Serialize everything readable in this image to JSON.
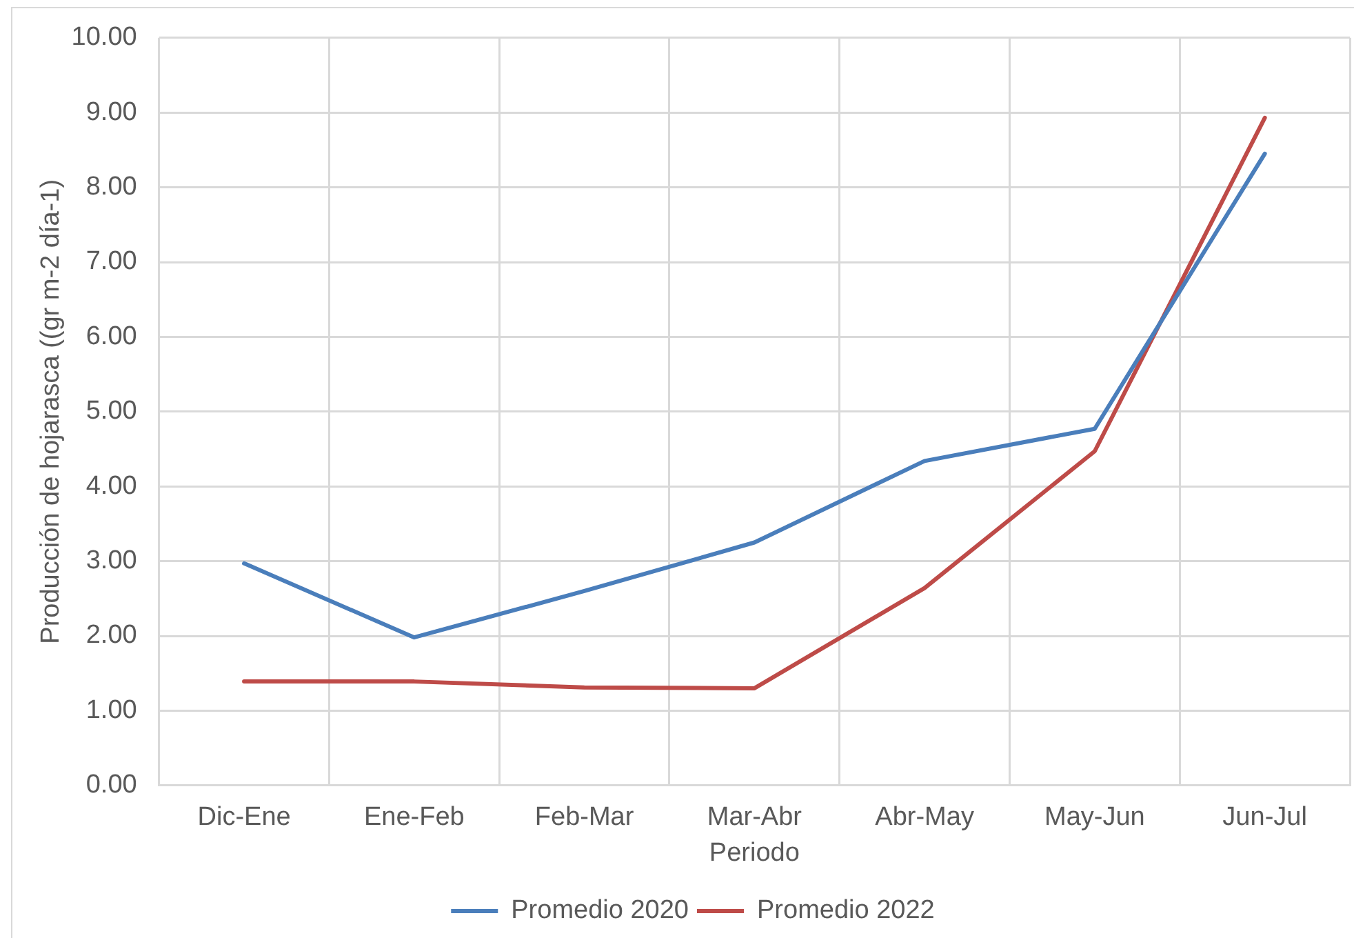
{
  "chart_data": {
    "type": "line",
    "xlabel": "Periodo",
    "ylabel": "Producción de hojarasca ((gr m-2 día-1)",
    "categories": [
      "Dic-Ene",
      "Ene-Feb",
      "Feb-Mar",
      "Mar-Abr",
      "Abr-May",
      "May-Jun",
      "Jun-Jul"
    ],
    "series": [
      {
        "name": "Promedio 2020",
        "color": "#4a7ebb",
        "values": [
          2.97,
          1.98,
          2.6,
          3.25,
          4.34,
          4.77,
          8.45
        ]
      },
      {
        "name": "Promedio 2022",
        "color": "#be4b48",
        "values": [
          1.39,
          1.39,
          1.31,
          1.3,
          2.64,
          4.47,
          8.93
        ]
      }
    ],
    "ylim": [
      0,
      10
    ],
    "yticks": [
      {
        "value": 0,
        "label": "0.00"
      },
      {
        "value": 1,
        "label": "1.00"
      },
      {
        "value": 2,
        "label": "2.00"
      },
      {
        "value": 3,
        "label": "3.00"
      },
      {
        "value": 4,
        "label": "4.00"
      },
      {
        "value": 5,
        "label": "5.00"
      },
      {
        "value": 6,
        "label": "6.00"
      },
      {
        "value": 7,
        "label": "7.00"
      },
      {
        "value": 8,
        "label": "8.00"
      },
      {
        "value": 9,
        "label": "9.00"
      },
      {
        "value": 10,
        "label": "10.00"
      }
    ],
    "grid": true,
    "legend": "bottom",
    "marker": "none",
    "line_style": "solid"
  }
}
